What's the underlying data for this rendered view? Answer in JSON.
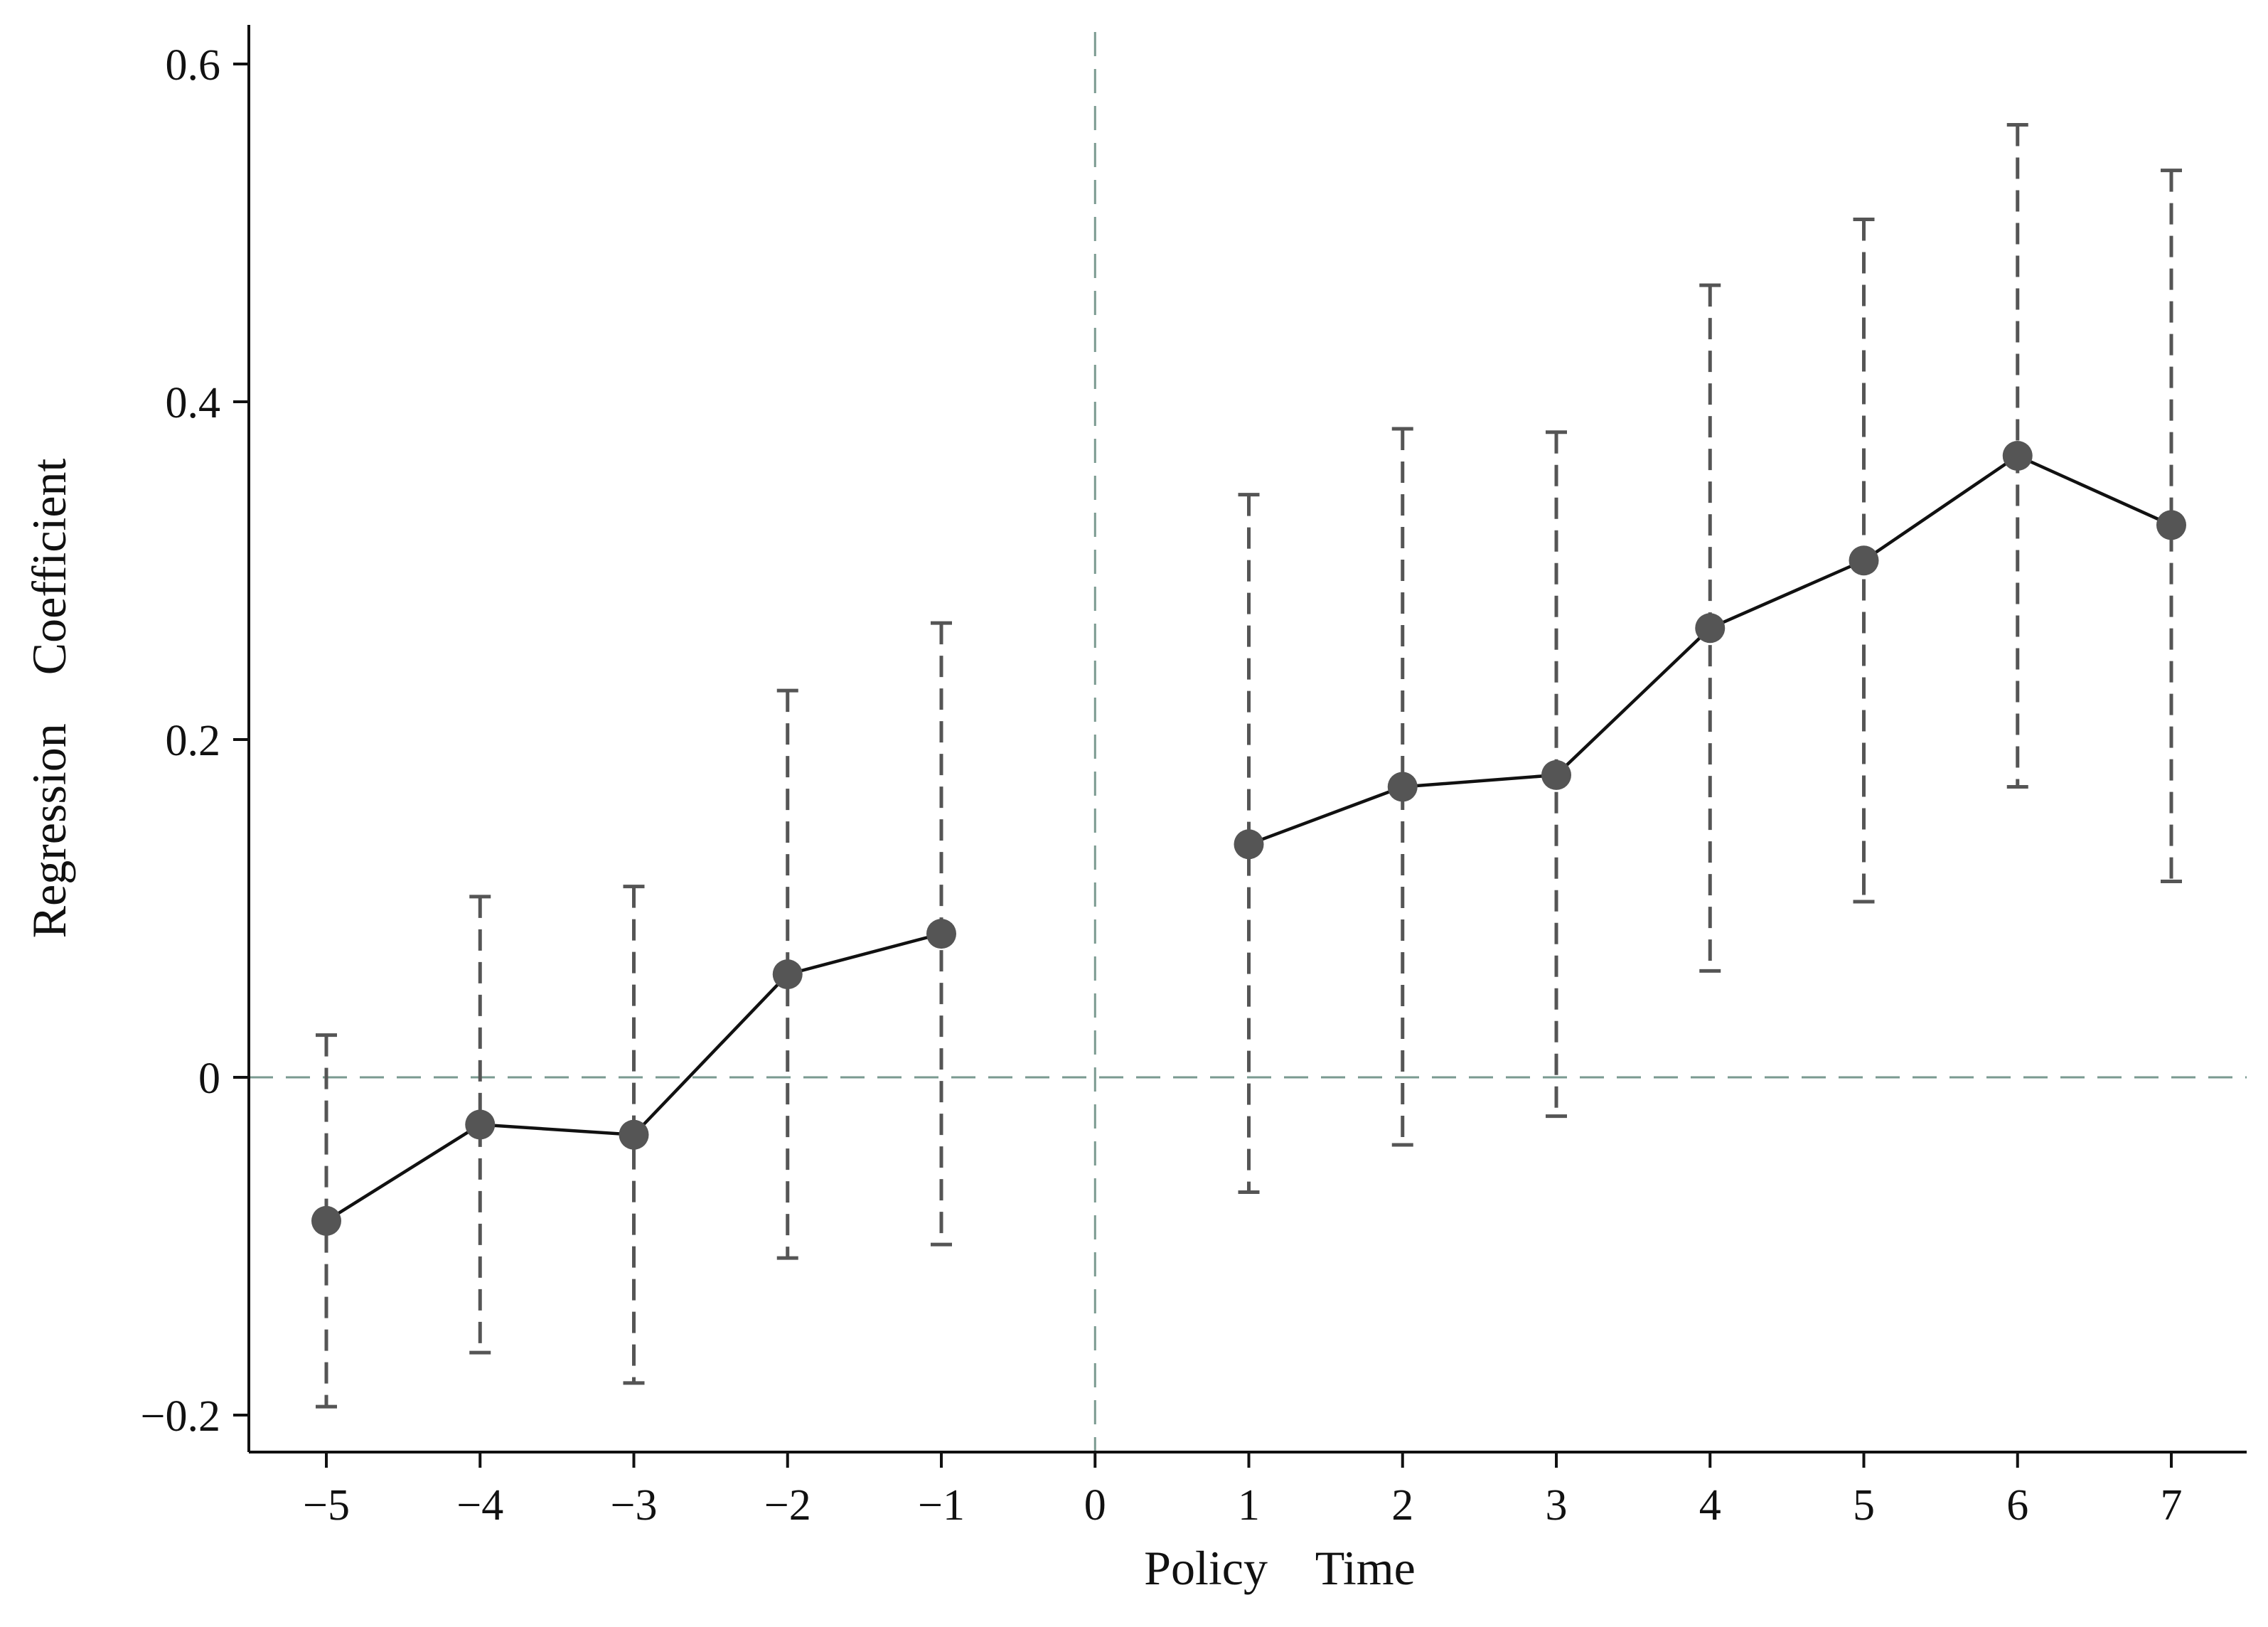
{
  "chart_data": {
    "type": "line",
    "title": "",
    "xlabel": "Policy    Time",
    "ylabel": "Regression    Coefficient",
    "xlim": [
      -5.5,
      7.5
    ],
    "ylim": [
      -0.22,
      0.62
    ],
    "x_ticks": [
      -5,
      -4,
      -3,
      -2,
      -1,
      0,
      1,
      2,
      3,
      4,
      5,
      6,
      7
    ],
    "x_tick_labels": [
      "−5",
      "−4",
      "−3",
      "−2",
      "−1",
      "0",
      "1",
      "2",
      "3",
      "4",
      "5",
      "6",
      "7"
    ],
    "y_ticks": [
      -0.2,
      0,
      0.2,
      0.4,
      0.6
    ],
    "y_tick_labels": [
      "−0.2",
      "0",
      "0.2",
      "0.4",
      "0.6"
    ],
    "reference_lines": {
      "horizontal": 0,
      "vertical": 0
    },
    "series": [
      {
        "points": [
          {
            "x": -5,
            "y": -0.085,
            "lower": -0.195,
            "upper": 0.025
          },
          {
            "x": -4,
            "y": -0.028,
            "lower": -0.163,
            "upper": 0.107
          },
          {
            "x": -3,
            "y": -0.034,
            "lower": -0.181,
            "upper": 0.113
          },
          {
            "x": -2,
            "y": 0.061,
            "lower": -0.107,
            "upper": 0.229
          },
          {
            "x": -1,
            "y": 0.085,
            "lower": -0.099,
            "upper": 0.269
          },
          {
            "x": 1,
            "y": 0.138,
            "lower": -0.068,
            "upper": 0.345
          },
          {
            "x": 2,
            "y": 0.172,
            "lower": -0.04,
            "upper": 0.384
          },
          {
            "x": 3,
            "y": 0.179,
            "lower": -0.023,
            "upper": 0.382
          },
          {
            "x": 4,
            "y": 0.266,
            "lower": 0.063,
            "upper": 0.469
          },
          {
            "x": 5,
            "y": 0.306,
            "lower": 0.104,
            "upper": 0.508
          },
          {
            "x": 6,
            "y": 0.368,
            "lower": 0.172,
            "upper": 0.564
          },
          {
            "x": 7,
            "y": 0.327,
            "lower": 0.116,
            "upper": 0.537
          }
        ]
      }
    ],
    "line_segments": [
      [
        -5,
        -4,
        -3,
        -2,
        -1
      ],
      [
        1,
        2,
        3,
        4,
        5,
        6,
        7
      ]
    ],
    "colors": {
      "line": "#111111",
      "marker": "#555555",
      "error_bar": "#555555",
      "reference": "#7a9a90",
      "axis": "#111111"
    },
    "grid": false,
    "legend": "none"
  }
}
